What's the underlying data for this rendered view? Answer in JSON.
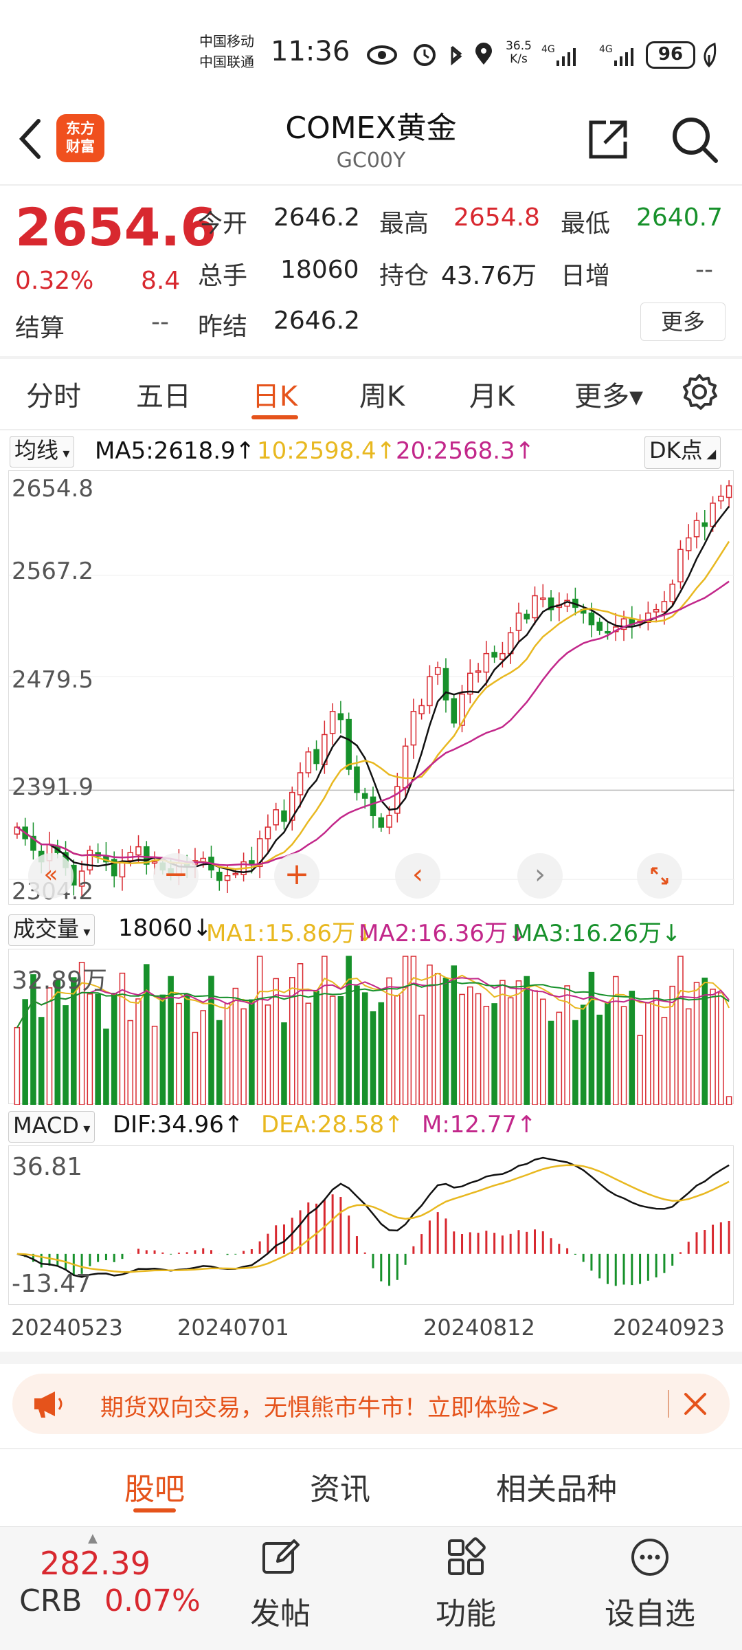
{
  "status_bar": {
    "carrier1": "中国移动",
    "carrier2": "中国联通",
    "time": "11:36",
    "speed_value": "36.5",
    "speed_unit": "K/s",
    "battery": "96",
    "icons": [
      "eye-icon",
      "alarm-icon",
      "bluetooth-icon",
      "location-icon",
      "signal-4g-icon",
      "signal-4g-icon",
      "battery-icon",
      "leaf-icon"
    ]
  },
  "header": {
    "logo_line1": "东方",
    "logo_line2": "财富",
    "title": "COMEX黄金",
    "code": "GC00Y"
  },
  "quote": {
    "price": "2654.6",
    "change_pct": "0.32%",
    "change": "8.4",
    "settle_label": "结算",
    "settle_value": "--",
    "open_label": "今开",
    "open_value": "2646.2",
    "high_label": "最高",
    "high_value": "2654.8",
    "low_label": "最低",
    "low_value": "2640.7",
    "volume_label": "总手",
    "volume_value": "18060",
    "position_label": "持仓",
    "position_value": "43.76万",
    "daily_inc_label": "日增",
    "daily_inc_value": "--",
    "prev_settle_label": "昨结",
    "prev_settle_value": "2646.2",
    "more_button": "更多"
  },
  "tabs": {
    "items": [
      "分时",
      "五日",
      "日K",
      "周K",
      "月K",
      "更多▾"
    ],
    "active_index": 2
  },
  "kline_indicators": {
    "selector": "均线",
    "ma5": "MA5:2618.9↑",
    "ma10": "10:2598.4↑",
    "ma20": "20:2568.3↑",
    "dk": "DK点"
  },
  "volume_indicators": {
    "selector": "成交量",
    "vol": "18060↓",
    "ma1": "MA1:15.86万↓",
    "ma2": "MA2:16.36万↓",
    "ma3": "MA3:16.26万↓"
  },
  "macd_indicators": {
    "selector": "MACD",
    "dif": "DIF:34.96↑",
    "dea": "DEA:28.58↑",
    "m": "M:12.77↑"
  },
  "chart_data": {
    "type": "candlestick",
    "price_axis_labels": [
      "2654.8",
      "2567.2",
      "2479.5",
      "2391.9",
      "2304.2"
    ],
    "price_range": [
      2304.2,
      2654.8
    ],
    "volume_axis_label": "32.89万",
    "volume_max": 328900,
    "macd_axis_labels": [
      "36.81",
      "-13.47"
    ],
    "macd_range": [
      -13.47,
      36.81
    ],
    "date_labels": [
      "20240523",
      "20240701",
      "20240812",
      "20240923"
    ],
    "close": [
      2360,
      2350,
      2340,
      2330,
      2345,
      2338,
      2325,
      2310,
      2322,
      2340,
      2335,
      2330,
      2318,
      2330,
      2338,
      2343,
      2328,
      2330,
      2323,
      2320,
      2329,
      2326,
      2331,
      2333,
      2323,
      2314,
      2318,
      2320,
      2330,
      2328,
      2350,
      2360,
      2375,
      2365,
      2390,
      2407,
      2425,
      2415,
      2440,
      2460,
      2453,
      2410,
      2390,
      2385,
      2370,
      2360,
      2370,
      2395,
      2430,
      2460,
      2465,
      2490,
      2498,
      2470,
      2450,
      2475,
      2493,
      2495,
      2510,
      2507,
      2510,
      2528,
      2545,
      2540,
      2560,
      2558,
      2548,
      2552,
      2556,
      2550,
      2545,
      2535,
      2530,
      2528,
      2533,
      2540,
      2535,
      2538,
      2545,
      2548,
      2555,
      2570,
      2600,
      2610,
      2625,
      2620,
      2640,
      2646,
      2655
    ]
  },
  "ad_banner": {
    "text": "期货双向交易，无惧熊市牛市！立即体验>>"
  },
  "bottom_tabs": {
    "items": [
      "股吧",
      "资讯",
      "相关品种"
    ],
    "active_index": 0
  },
  "bottom_bar": {
    "crb_value": "282.39",
    "crb_label": "CRB",
    "crb_change": "0.07%",
    "post": "发帖",
    "func": "功能",
    "watch": "设自选"
  },
  "colors": {
    "accent": "#e5531b",
    "up": "#d8282f",
    "down": "#17912b",
    "ma5": "#111111",
    "ma10": "#e8b820",
    "ma20": "#c2278a"
  }
}
